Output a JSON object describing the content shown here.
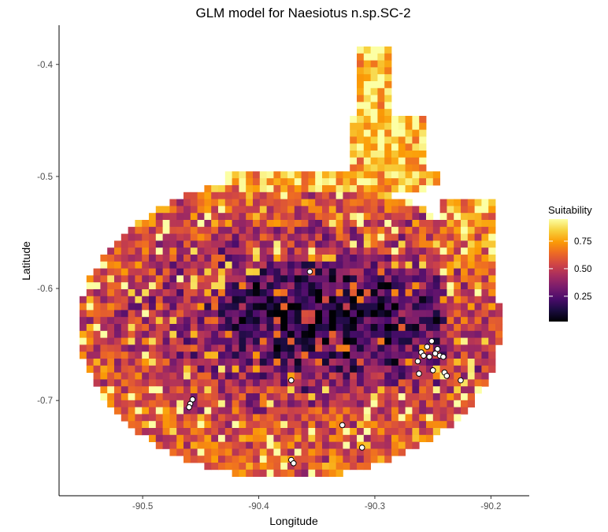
{
  "chart_data": {
    "type": "heatmap",
    "title": "GLM model for Naesiotus n.sp.SC-2",
    "xlabel": "Longitude",
    "ylabel": "Latitude",
    "xlim": [
      -90.572,
      -90.167
    ],
    "ylim": [
      -0.785,
      -0.365
    ],
    "x_ticks": [
      -90.5,
      -90.4,
      -90.3,
      -90.2
    ],
    "x_tick_labels": [
      "-90.5",
      "-90.4",
      "-90.3",
      "-90.2"
    ],
    "y_ticks": [
      -0.4,
      -0.5,
      -0.6,
      -0.7
    ],
    "y_tick_labels": [
      "-0.4",
      "-0.5",
      "-0.6",
      "-0.7"
    ],
    "grid": false,
    "legend": {
      "title": "Suitability",
      "placement": "right",
      "range": [
        0.02,
        0.95
      ],
      "ticks": [
        0.25,
        0.5,
        0.75
      ],
      "tick_labels": [
        "0.25",
        "0.50",
        "0.75"
      ]
    },
    "colormap": [
      "#000004",
      "#1b0c41",
      "#4a0c6b",
      "#781c6d",
      "#a52c60",
      "#cf4446",
      "#ed6925",
      "#fb9b06",
      "#f7d13d",
      "#fcffa4"
    ],
    "points": {
      "fill": "#ffffff",
      "stroke": "#000000",
      "coords": [
        [
          -90.356,
          -0.585
        ],
        [
          -90.372,
          -0.682
        ],
        [
          -90.457,
          -0.699
        ],
        [
          -90.459,
          -0.703
        ],
        [
          -90.46,
          -0.706
        ],
        [
          -90.328,
          -0.722
        ],
        [
          -90.311,
          -0.742
        ],
        [
          -90.372,
          -0.753
        ],
        [
          -90.37,
          -0.756
        ],
        [
          -90.251,
          -0.647
        ],
        [
          -90.255,
          -0.652
        ],
        [
          -90.246,
          -0.654
        ],
        [
          -90.26,
          -0.657
        ],
        [
          -90.258,
          -0.66
        ],
        [
          -90.253,
          -0.661
        ],
        [
          -90.248,
          -0.658
        ],
        [
          -90.244,
          -0.66
        ],
        [
          -90.241,
          -0.661
        ],
        [
          -90.263,
          -0.665
        ],
        [
          -90.262,
          -0.676
        ],
        [
          -90.25,
          -0.673
        ],
        [
          -90.24,
          -0.675
        ],
        [
          -90.238,
          -0.678
        ],
        [
          -90.226,
          -0.682
        ]
      ]
    }
  }
}
